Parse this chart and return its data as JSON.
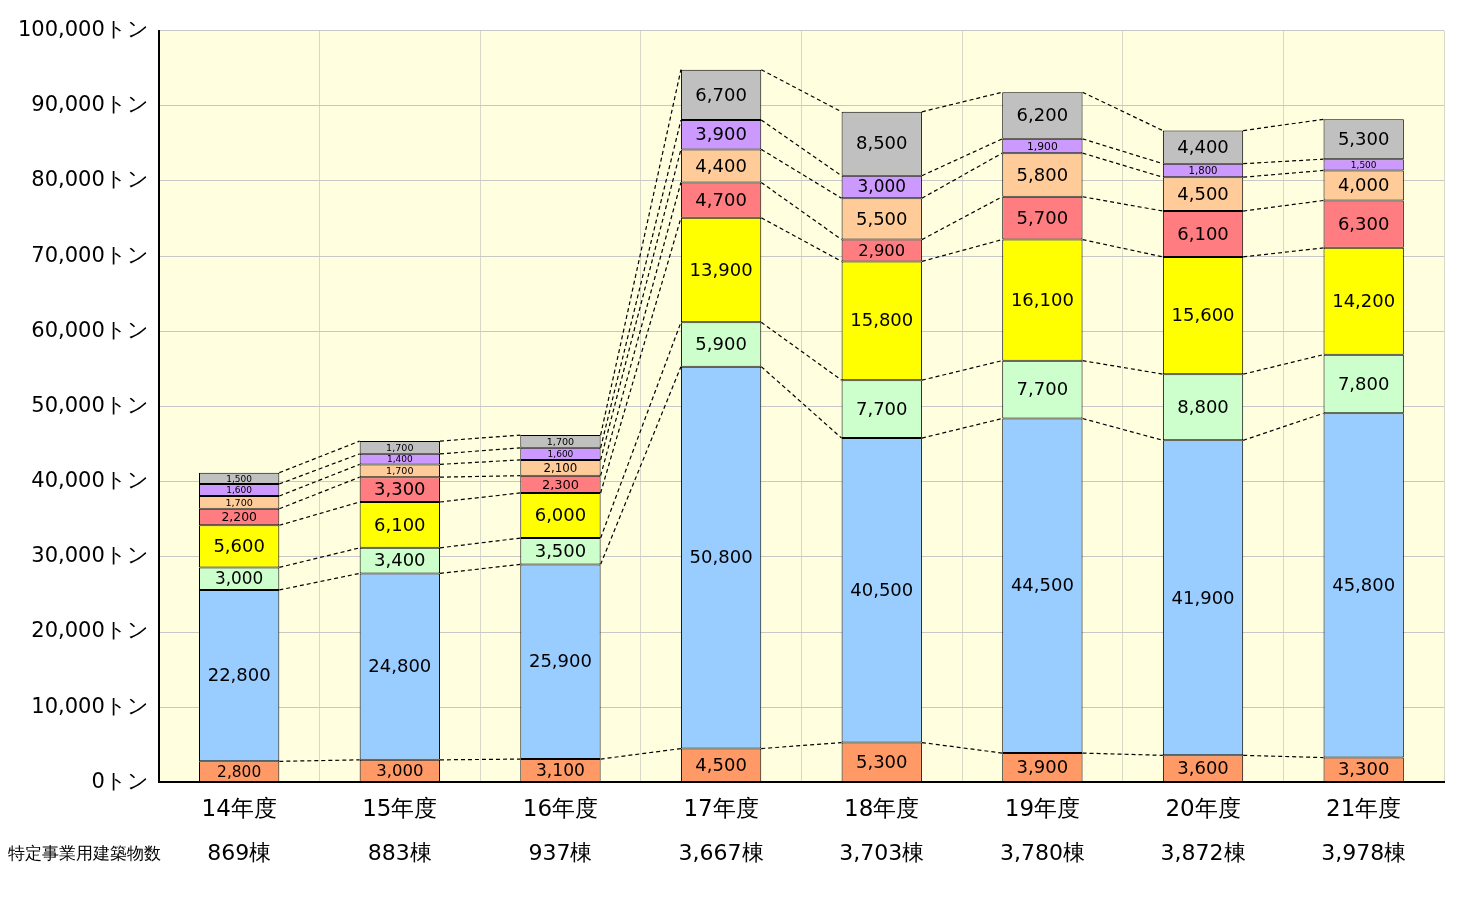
{
  "chart_data": {
    "type": "bar",
    "stacked": true,
    "grid": true,
    "legend": false,
    "categories": [
      "14年度",
      "15年度",
      "16年度",
      "17年度",
      "18年度",
      "19年度",
      "20年度",
      "21年度"
    ],
    "series": [
      {
        "color": "#ff9966",
        "values": [
          2800,
          3000,
          3100,
          4500,
          5300,
          3900,
          3600,
          3300
        ],
        "value_labels": [
          "2,800",
          "3,000",
          "3,100",
          "4,500",
          "5,300",
          "3,900",
          "3,600",
          "3,300"
        ]
      },
      {
        "color": "#99ccff",
        "values": [
          22800,
          24800,
          25900,
          50800,
          40500,
          44500,
          41900,
          45800
        ],
        "value_labels": [
          "22,800",
          "24,800",
          "25,900",
          "50,800",
          "40,500",
          "44,500",
          "41,900",
          "45,800"
        ]
      },
      {
        "color": "#ccffcc",
        "values": [
          3000,
          3400,
          3500,
          5900,
          7700,
          7700,
          8800,
          7800
        ],
        "value_labels": [
          "3,000",
          "3,400",
          "3,500",
          "5,900",
          "7,700",
          "7,700",
          "8,800",
          "7,800"
        ]
      },
      {
        "color": "#ffff00",
        "values": [
          5600,
          6100,
          6000,
          13900,
          15800,
          16100,
          15600,
          14200
        ],
        "value_labels": [
          "5,600",
          "6,100",
          "6,000",
          "13,900",
          "15,800",
          "16,100",
          "15,600",
          "14,200"
        ]
      },
      {
        "color": "#ff7c80",
        "values": [
          2200,
          3300,
          2300,
          4700,
          2900,
          5700,
          6100,
          6300
        ],
        "value_labels": [
          "2,200",
          "3,300",
          "2,300",
          "4,700",
          "2,900",
          "5,700",
          "6,100",
          "6,300"
        ]
      },
      {
        "color": "#ffcc99",
        "values": [
          1700,
          1700,
          2100,
          4400,
          5500,
          5800,
          4500,
          4000
        ],
        "value_labels": [
          "1,700",
          "1,700",
          "2,100",
          "4,400",
          "5,500",
          "5,800",
          "4,500",
          "4,000"
        ]
      },
      {
        "color": "#cc99ff",
        "values": [
          1600,
          1400,
          1600,
          3900,
          3000,
          1900,
          1800,
          1500
        ],
        "value_labels": [
          "1,600",
          "1,400",
          "1,600",
          "3,900",
          "3,000",
          "1,900",
          "1,800",
          "1,500"
        ]
      },
      {
        "color": "#c0c0c0",
        "values": [
          1500,
          1700,
          1700,
          6700,
          8500,
          6200,
          4400,
          5300
        ],
        "value_labels": [
          "1,500",
          "1,700",
          "1,700",
          "6,700",
          "8,500",
          "6,200",
          "4,400",
          "5,300"
        ]
      }
    ],
    "ylim": [
      0,
      100000
    ],
    "yticks": [
      {
        "value": 0,
        "label": "0トン"
      },
      {
        "value": 10000,
        "label": "10,000トン"
      },
      {
        "value": 20000,
        "label": "20,000トン"
      },
      {
        "value": 30000,
        "label": "30,000トン"
      },
      {
        "value": 40000,
        "label": "40,000トン"
      },
      {
        "value": 50000,
        "label": "50,000トン"
      },
      {
        "value": 60000,
        "label": "60,000トン"
      },
      {
        "value": 70000,
        "label": "70,000トン"
      },
      {
        "value": 80000,
        "label": "80,000トン"
      },
      {
        "value": 90000,
        "label": "90,000トン"
      },
      {
        "value": 100000,
        "label": "100,000トン"
      }
    ],
    "annotations": [
      "特定事業用建築物数",
      "869棟",
      "883棟",
      "937棟",
      "3,667棟",
      "3,703棟",
      "3,780棟",
      "3,872棟",
      "3,978棟"
    ]
  }
}
